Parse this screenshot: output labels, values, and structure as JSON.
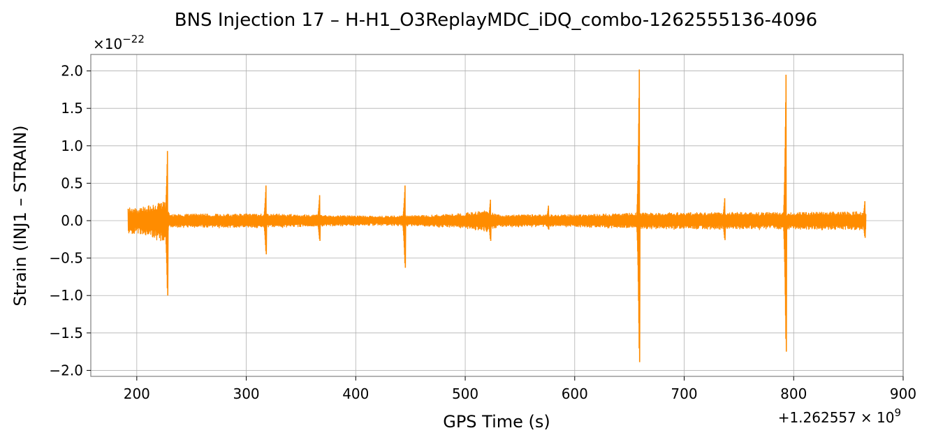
{
  "chart_data": {
    "type": "line",
    "title": "BNS Injection 17 – H-H1_O3ReplayMDC_iDQ_combo-1262555136-4096",
    "xlabel": "GPS Time (s)",
    "ylabel": "Strain (INJ1 – STRAIN)",
    "x_offset_label": "+1.262557",
    "x_offset_exp_label": "× 10",
    "x_offset_exp": "9",
    "y_scale_label": "×10",
    "y_scale_exp": "−22",
    "xlim": [
      158,
      900
    ],
    "ylim": [
      -2.08,
      2.22
    ],
    "xticks": [
      200,
      300,
      400,
      500,
      600,
      700,
      800,
      900
    ],
    "xtick_labels": [
      "200",
      "300",
      "400",
      "500",
      "600",
      "700",
      "800",
      "900"
    ],
    "yticks": [
      2.0,
      1.5,
      1.0,
      0.5,
      0.0,
      -0.5,
      -1.0,
      -1.5,
      -2.0
    ],
    "ytick_labels": [
      "2.0",
      "1.5",
      "1.0",
      "0.5",
      "0.0",
      "−0.5",
      "−1.0",
      "−1.5",
      "−2.0"
    ],
    "grid": true,
    "color": "#ff8c00",
    "x_range": [
      192,
      866
    ],
    "baseline_envelope": [
      {
        "x": 192,
        "amp": 0.18
      },
      {
        "x": 200,
        "amp": 0.16
      },
      {
        "x": 215,
        "amp": 0.22
      },
      {
        "x": 225,
        "amp": 0.28
      },
      {
        "x": 230,
        "amp": 0.09
      },
      {
        "x": 300,
        "amp": 0.09
      },
      {
        "x": 330,
        "amp": 0.09
      },
      {
        "x": 380,
        "amp": 0.07
      },
      {
        "x": 420,
        "amp": 0.06
      },
      {
        "x": 460,
        "amp": 0.07
      },
      {
        "x": 500,
        "amp": 0.1
      },
      {
        "x": 520,
        "amp": 0.14
      },
      {
        "x": 530,
        "amp": 0.08
      },
      {
        "x": 600,
        "amp": 0.08
      },
      {
        "x": 650,
        "amp": 0.1
      },
      {
        "x": 700,
        "amp": 0.11
      },
      {
        "x": 750,
        "amp": 0.11
      },
      {
        "x": 800,
        "amp": 0.11
      },
      {
        "x": 866,
        "amp": 0.12
      }
    ],
    "spikes": [
      {
        "x": 228,
        "max": 0.93,
        "min": -1.0
      },
      {
        "x": 318,
        "max": 0.47,
        "min": -0.45
      },
      {
        "x": 367,
        "max": 0.34,
        "min": -0.27
      },
      {
        "x": 445,
        "max": 0.47,
        "min": -0.63
      },
      {
        "x": 523,
        "max": 0.28,
        "min": -0.27
      },
      {
        "x": 576,
        "max": 0.2,
        "min": -0.12
      },
      {
        "x": 659,
        "max": 2.02,
        "min": -1.89
      },
      {
        "x": 737,
        "max": 0.3,
        "min": -0.26
      },
      {
        "x": 793,
        "max": 1.95,
        "min": -1.75
      },
      {
        "x": 865,
        "max": 0.26,
        "min": -0.23
      }
    ]
  }
}
